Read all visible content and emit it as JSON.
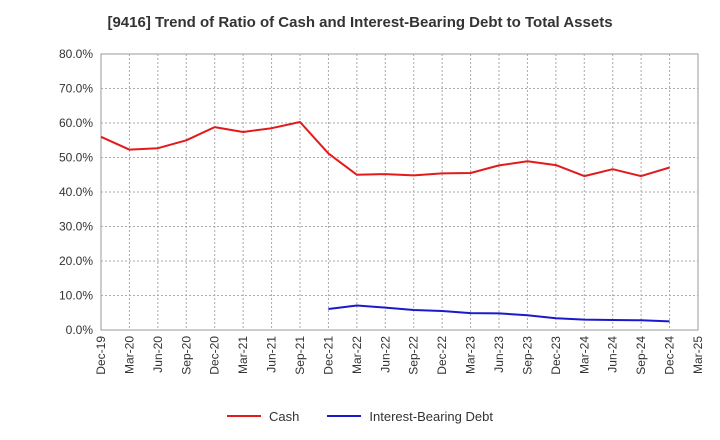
{
  "chart_data": {
    "type": "line",
    "title": "[9416]  Trend of Ratio of Cash and Interest-Bearing Debt to Total Assets",
    "xlabel": "",
    "ylabel": "",
    "ylim": [
      0,
      80
    ],
    "yticks": [
      "0.0%",
      "10.0%",
      "20.0%",
      "30.0%",
      "40.0%",
      "50.0%",
      "60.0%",
      "70.0%",
      "80.0%"
    ],
    "categories": [
      "Dec-19",
      "Mar-20",
      "Jun-20",
      "Sep-20",
      "Dec-20",
      "Mar-21",
      "Jun-21",
      "Sep-21",
      "Dec-21",
      "Mar-22",
      "Jun-22",
      "Sep-22",
      "Dec-22",
      "Mar-23",
      "Jun-23",
      "Sep-23",
      "Dec-23",
      "Mar-24",
      "Jun-24",
      "Sep-24",
      "Dec-24",
      "Mar-25"
    ],
    "grid": true,
    "legend_position": "bottom",
    "series": [
      {
        "name": "Cash",
        "color": "#e31a1c",
        "values": [
          56.0,
          52.3,
          52.7,
          55.0,
          58.8,
          57.4,
          58.5,
          60.3,
          51.2,
          45.0,
          45.2,
          44.8,
          45.4,
          45.5,
          47.7,
          48.9,
          47.8,
          44.6,
          46.6,
          44.6,
          47.1,
          null
        ]
      },
      {
        "name": "Interest-Bearing Debt",
        "color": "#1a1acc",
        "values": [
          null,
          null,
          null,
          null,
          null,
          null,
          null,
          null,
          6.1,
          7.1,
          6.5,
          5.8,
          5.5,
          4.9,
          4.8,
          4.3,
          3.4,
          3.0,
          2.9,
          2.8,
          2.5,
          null
        ]
      }
    ]
  }
}
